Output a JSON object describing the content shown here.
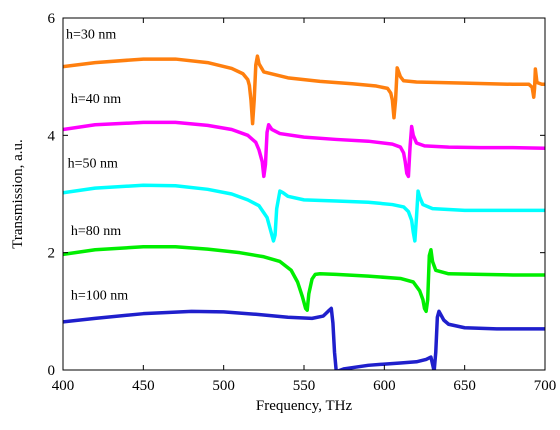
{
  "chart_data": {
    "type": "line",
    "title": "",
    "xlabel": "Frequency, THz",
    "ylabel": "Transmission, a.u.",
    "xlim": [
      400,
      700
    ],
    "ylim": [
      0,
      6
    ],
    "xticks": [
      400,
      450,
      500,
      550,
      600,
      650,
      700
    ],
    "yticks": [
      0,
      2,
      4,
      6
    ],
    "grid": false,
    "series": [
      {
        "name": "h=30 nm",
        "color": "#ff7f0e",
        "x": [
          400,
          420,
          450,
          470,
          490,
          505,
          512,
          515,
          516,
          517,
          518,
          519,
          520,
          521,
          522,
          525,
          540,
          560,
          580,
          595,
          602,
          604,
          605,
          606,
          607,
          608,
          610,
          612,
          620,
          650,
          680,
          690,
          692,
          693,
          693.5,
          694,
          695,
          698,
          700
        ],
        "y": [
          5.17,
          5.24,
          5.3,
          5.3,
          5.24,
          5.14,
          5.05,
          4.95,
          4.85,
          4.6,
          4.2,
          4.6,
          5.2,
          5.35,
          5.22,
          5.08,
          4.98,
          4.92,
          4.88,
          4.84,
          4.8,
          4.72,
          4.6,
          4.3,
          4.6,
          5.15,
          5.0,
          4.93,
          4.91,
          4.89,
          4.87,
          4.87,
          4.82,
          4.65,
          4.8,
          5.13,
          4.9,
          4.87,
          4.87
        ]
      },
      {
        "name": "h=40 nm",
        "color": "#ff00ff",
        "x": [
          400,
          420,
          450,
          470,
          490,
          505,
          515,
          520,
          522,
          524,
          525,
          526,
          527,
          528,
          530,
          535,
          550,
          570,
          590,
          605,
          610,
          612,
          613,
          614,
          615,
          616,
          617,
          618,
          620,
          625,
          640,
          660,
          680,
          700
        ],
        "y": [
          4.1,
          4.18,
          4.22,
          4.22,
          4.17,
          4.1,
          4.0,
          3.88,
          3.75,
          3.55,
          3.3,
          3.5,
          4.05,
          4.18,
          4.1,
          4.03,
          3.97,
          3.93,
          3.9,
          3.85,
          3.8,
          3.7,
          3.55,
          3.35,
          3.3,
          3.8,
          4.15,
          4.0,
          3.87,
          3.82,
          3.8,
          3.79,
          3.79,
          3.78
        ]
      },
      {
        "name": "h=50 nm",
        "color": "#00ffff",
        "x": [
          400,
          420,
          450,
          470,
          490,
          505,
          515,
          522,
          527,
          529,
          531,
          532,
          533,
          535,
          537,
          540,
          550,
          570,
          590,
          605,
          612,
          615,
          617,
          618,
          619,
          620,
          621,
          622,
          624,
          630,
          650,
          680,
          700
        ],
        "y": [
          3.02,
          3.1,
          3.15,
          3.14,
          3.08,
          3.0,
          2.9,
          2.8,
          2.6,
          2.4,
          2.2,
          2.3,
          2.75,
          3.05,
          3.02,
          2.96,
          2.9,
          2.88,
          2.86,
          2.82,
          2.78,
          2.7,
          2.55,
          2.35,
          2.2,
          2.6,
          3.05,
          2.95,
          2.82,
          2.75,
          2.72,
          2.72,
          2.72
        ]
      },
      {
        "name": "h=80 nm",
        "color": "#00ee00",
        "x": [
          400,
          420,
          450,
          470,
          490,
          510,
          525,
          535,
          542,
          546,
          549,
          551,
          552,
          553,
          555,
          557,
          560,
          570,
          590,
          610,
          618,
          622,
          624,
          625,
          626,
          627,
          628,
          629,
          630,
          632,
          640,
          660,
          680,
          700
        ],
        "y": [
          1.97,
          2.05,
          2.1,
          2.1,
          2.06,
          2.0,
          1.93,
          1.85,
          1.7,
          1.5,
          1.25,
          1.05,
          1.02,
          1.3,
          1.55,
          1.63,
          1.64,
          1.63,
          1.6,
          1.56,
          1.5,
          1.35,
          1.2,
          1.05,
          1.0,
          1.2,
          1.95,
          2.05,
          1.85,
          1.7,
          1.64,
          1.63,
          1.62,
          1.62
        ]
      },
      {
        "name": "h=100 nm",
        "color": "#1f1fcc",
        "x": [
          400,
          420,
          450,
          480,
          500,
          520,
          540,
          555,
          562,
          565,
          567,
          568,
          569,
          570,
          571,
          575,
          590,
          610,
          620,
          626,
          629,
          630,
          631,
          632,
          633,
          634,
          635,
          637,
          640,
          650,
          670,
          700
        ],
        "y": [
          0.82,
          0.88,
          0.96,
          1.0,
          0.99,
          0.95,
          0.9,
          0.88,
          0.92,
          1.0,
          1.05,
          0.8,
          0.3,
          0.0,
          -0.02,
          0.02,
          0.08,
          0.12,
          0.14,
          0.18,
          0.22,
          0.1,
          -0.02,
          0.3,
          0.9,
          1.0,
          0.95,
          0.85,
          0.78,
          0.72,
          0.7,
          0.7
        ]
      }
    ],
    "annotations": [
      {
        "text": "h=30 nm",
        "x": 400,
        "y": 5.65
      },
      {
        "text": "h=40 nm",
        "x": 403,
        "y": 4.55
      },
      {
        "text": "h=50 nm",
        "x": 401,
        "y": 3.45
      },
      {
        "text": "h=80 nm",
        "x": 403,
        "y": 2.3
      },
      {
        "text": "h=100 nm",
        "x": 403,
        "y": 1.2
      }
    ]
  }
}
